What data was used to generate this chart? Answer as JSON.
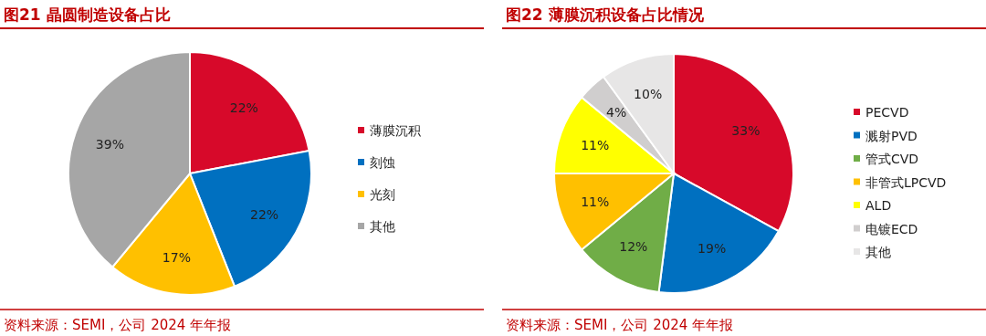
{
  "chart_data": [
    {
      "type": "pie",
      "title": "图21  晶圆制造设备占比",
      "categories": [
        "薄膜沉积",
        "刻蚀",
        "光刻",
        "其他"
      ],
      "values": [
        22,
        22,
        17,
        39
      ],
      "colors": [
        "#d7092a",
        "#0070c0",
        "#ffc000",
        "#a6a6a6"
      ],
      "value_labels": [
        "22%",
        "22%",
        "17%",
        "39%"
      ],
      "legend": "right",
      "annotations": [
        "资料来源：SEMI，公司 2024 年年报"
      ]
    },
    {
      "type": "pie",
      "title": "图22  薄膜沉积设备占比情况",
      "categories": [
        "PECVD",
        "溅射PVD",
        "管式CVD",
        "非管式LPCVD",
        "ALD",
        "电镀ECD",
        "其他"
      ],
      "values": [
        33,
        19,
        12,
        11,
        11,
        4,
        10
      ],
      "colors": [
        "#d7092a",
        "#0070c0",
        "#70ad47",
        "#ffc000",
        "#ffff00",
        "#d0cece",
        "#e7e6e6"
      ],
      "value_labels": [
        "33%",
        "19%",
        "12%",
        "11%",
        "11%",
        "4%",
        "10%"
      ],
      "legend": "right",
      "annotations": [
        "资料来源：SEMI，公司 2024 年年报"
      ]
    }
  ]
}
